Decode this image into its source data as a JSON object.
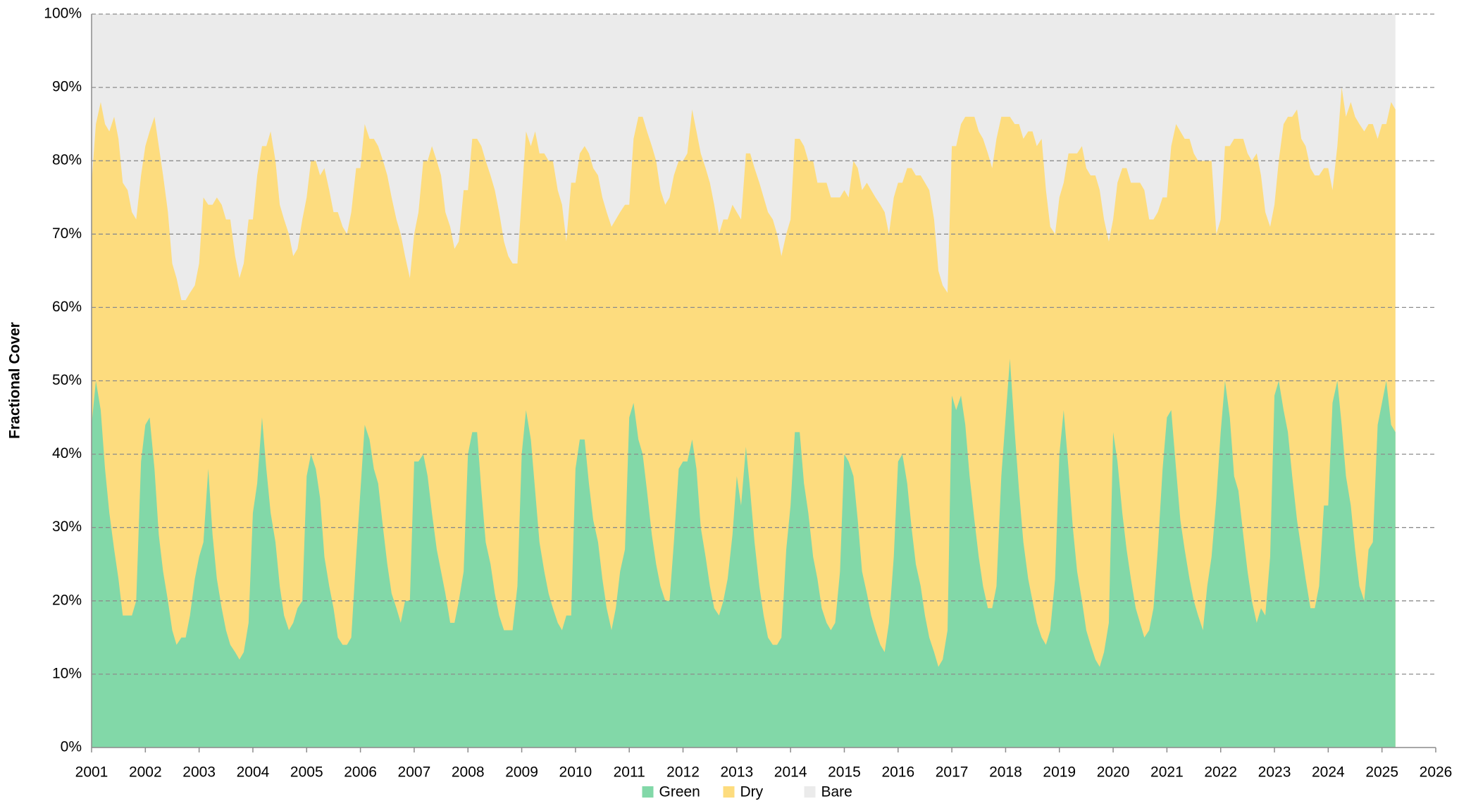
{
  "chart_data": {
    "type": "stacked_area",
    "y_label": "Fractional Cover",
    "xlim": [
      2001,
      2026
    ],
    "ylim": [
      0,
      100
    ],
    "xticks": [
      2001,
      2002,
      2003,
      2004,
      2005,
      2006,
      2007,
      2008,
      2009,
      2010,
      2011,
      2012,
      2013,
      2014,
      2015,
      2016,
      2017,
      2018,
      2019,
      2020,
      2021,
      2022,
      2023,
      2024,
      2025,
      2026
    ],
    "yticks": [
      {
        "value": 0,
        "label": "0%"
      },
      {
        "value": 10,
        "label": "10%"
      },
      {
        "value": 20,
        "label": "20%"
      },
      {
        "value": 30,
        "label": "30%"
      },
      {
        "value": 40,
        "label": "40%"
      },
      {
        "value": 50,
        "label": "50%"
      },
      {
        "value": 60,
        "label": "60%"
      },
      {
        "value": 70,
        "label": "70%"
      },
      {
        "value": 80,
        "label": "80%"
      },
      {
        "value": 90,
        "label": "90%"
      },
      {
        "value": 100,
        "label": "100%"
      }
    ],
    "grid": true,
    "legend": "bottom",
    "x": [
      2001,
      2001.08,
      2001.17,
      2001.25,
      2001.33,
      2001.42,
      2001.5,
      2001.58,
      2001.67,
      2001.75,
      2001.83,
      2001.92,
      2002,
      2002.08,
      2002.17,
      2002.25,
      2002.33,
      2002.42,
      2002.5,
      2002.58,
      2002.67,
      2002.75,
      2002.83,
      2002.92,
      2003,
      2003.08,
      2003.17,
      2003.25,
      2003.33,
      2003.42,
      2003.5,
      2003.58,
      2003.67,
      2003.75,
      2003.83,
      2003.92,
      2004,
      2004.08,
      2004.17,
      2004.25,
      2004.33,
      2004.42,
      2004.5,
      2004.58,
      2004.67,
      2004.75,
      2004.83,
      2004.92,
      2005,
      2005.08,
      2005.17,
      2005.25,
      2005.33,
      2005.42,
      2005.5,
      2005.58,
      2005.67,
      2005.75,
      2005.83,
      2005.92,
      2006,
      2006.08,
      2006.17,
      2006.25,
      2006.33,
      2006.42,
      2006.5,
      2006.58,
      2006.67,
      2006.75,
      2006.83,
      2006.92,
      2007,
      2007.08,
      2007.17,
      2007.25,
      2007.33,
      2007.42,
      2007.5,
      2007.58,
      2007.67,
      2007.75,
      2007.83,
      2007.92,
      2008,
      2008.08,
      2008.17,
      2008.25,
      2008.33,
      2008.42,
      2008.5,
      2008.58,
      2008.67,
      2008.75,
      2008.83,
      2008.92,
      2009,
      2009.08,
      2009.17,
      2009.25,
      2009.33,
      2009.42,
      2009.5,
      2009.58,
      2009.67,
      2009.75,
      2009.83,
      2009.92,
      2010,
      2010.08,
      2010.17,
      2010.25,
      2010.33,
      2010.42,
      2010.5,
      2010.58,
      2010.67,
      2010.75,
      2010.83,
      2010.92,
      2011,
      2011.08,
      2011.17,
      2011.25,
      2011.33,
      2011.42,
      2011.5,
      2011.58,
      2011.67,
      2011.75,
      2011.83,
      2011.92,
      2012,
      2012.08,
      2012.17,
      2012.25,
      2012.33,
      2012.42,
      2012.5,
      2012.58,
      2012.67,
      2012.75,
      2012.83,
      2012.92,
      2013,
      2013.08,
      2013.17,
      2013.25,
      2013.33,
      2013.42,
      2013.5,
      2013.58,
      2013.67,
      2013.75,
      2013.83,
      2013.92,
      2014,
      2014.08,
      2014.17,
      2014.25,
      2014.33,
      2014.42,
      2014.5,
      2014.58,
      2014.67,
      2014.75,
      2014.83,
      2014.92,
      2015,
      2015.08,
      2015.17,
      2015.25,
      2015.33,
      2015.42,
      2015.5,
      2015.58,
      2015.67,
      2015.75,
      2015.83,
      2015.92,
      2016,
      2016.08,
      2016.17,
      2016.25,
      2016.33,
      2016.42,
      2016.5,
      2016.58,
      2016.67,
      2016.75,
      2016.83,
      2016.92,
      2017,
      2017.08,
      2017.17,
      2017.25,
      2017.33,
      2017.42,
      2017.5,
      2017.58,
      2017.67,
      2017.75,
      2017.83,
      2017.92,
      2018,
      2018.08,
      2018.17,
      2018.25,
      2018.33,
      2018.42,
      2018.5,
      2018.58,
      2018.67,
      2018.75,
      2018.83,
      2018.92,
      2019,
      2019.08,
      2019.17,
      2019.25,
      2019.33,
      2019.42,
      2019.5,
      2019.58,
      2019.67,
      2019.75,
      2019.83,
      2019.92,
      2020,
      2020.08,
      2020.17,
      2020.25,
      2020.33,
      2020.42,
      2020.5,
      2020.58,
      2020.67,
      2020.75,
      2020.83,
      2020.92,
      2021,
      2021.08,
      2021.17,
      2021.25,
      2021.33,
      2021.42,
      2021.5,
      2021.58,
      2021.67,
      2021.75,
      2021.83,
      2021.92,
      2022,
      2022.08,
      2022.17,
      2022.25,
      2022.33,
      2022.42,
      2022.5,
      2022.58,
      2022.67,
      2022.75,
      2022.83,
      2022.92,
      2023,
      2023.08,
      2023.17,
      2023.25,
      2023.33,
      2023.42,
      2023.5,
      2023.58,
      2023.67,
      2023.75,
      2023.83,
      2023.92,
      2024,
      2024.08,
      2024.17,
      2024.25,
      2024.33,
      2024.42,
      2024.5,
      2024.58,
      2024.67,
      2024.75,
      2024.83,
      2024.92,
      2025,
      2025.08,
      2025.17,
      2025.25
    ],
    "series": [
      {
        "name": "Green",
        "color": "#82d8a8",
        "values": [
          44,
          50,
          46,
          38,
          32,
          27,
          23,
          18,
          18,
          18,
          20,
          39,
          44,
          45,
          38,
          29,
          24,
          20,
          16,
          14,
          15,
          15,
          18,
          23,
          26,
          28,
          38,
          29,
          23,
          19,
          16,
          14,
          13,
          12,
          13,
          17,
          32,
          36,
          45,
          38,
          32,
          28,
          22,
          18,
          16,
          17,
          19,
          20,
          37,
          40,
          38,
          34,
          26,
          22,
          19,
          15,
          14,
          14,
          15,
          26,
          35,
          44,
          42,
          38,
          36,
          30,
          25,
          21,
          19,
          17,
          20,
          20,
          39,
          39,
          40,
          37,
          32,
          27,
          24,
          21,
          17,
          17,
          20,
          24,
          40,
          43,
          43,
          35,
          28,
          25,
          21,
          18,
          16,
          16,
          16,
          22,
          40,
          46,
          42,
          35,
          28,
          24,
          21,
          19,
          17,
          16,
          18,
          18,
          38,
          42,
          42,
          36,
          31,
          28,
          23,
          19,
          16,
          19,
          24,
          27,
          45,
          47,
          42,
          40,
          35,
          29,
          25,
          22,
          20,
          20,
          28,
          38,
          39,
          39,
          42,
          38,
          30,
          26,
          22,
          19,
          18,
          20,
          23,
          29,
          37,
          33,
          41,
          35,
          28,
          22,
          18,
          15,
          14,
          14,
          15,
          27,
          33,
          43,
          43,
          36,
          32,
          26,
          23,
          19,
          17,
          16,
          17,
          24,
          40,
          39,
          37,
          31,
          24,
          21,
          18,
          16,
          14,
          13,
          17,
          26,
          39,
          40,
          36,
          30,
          25,
          22,
          18,
          15,
          13,
          11,
          12,
          16,
          48,
          46,
          48,
          44,
          37,
          31,
          26,
          22,
          19,
          19,
          22,
          37,
          45,
          53,
          43,
          35,
          28,
          23,
          20,
          17,
          15,
          14,
          16,
          23,
          40,
          46,
          38,
          30,
          24,
          20,
          16,
          14,
          12,
          11,
          13,
          17,
          43,
          39,
          32,
          27,
          23,
          19,
          17,
          15,
          16,
          19,
          27,
          38,
          45,
          46,
          38,
          31,
          27,
          23,
          20,
          18,
          16,
          22,
          26,
          34,
          43,
          50,
          45,
          37,
          35,
          29,
          24,
          20,
          17,
          19,
          18,
          26,
          48,
          50,
          46,
          43,
          37,
          31,
          27,
          23,
          19,
          19,
          22,
          33,
          33,
          47,
          50,
          44,
          37,
          33,
          27,
          22,
          20,
          27,
          28,
          44,
          47,
          50,
          44,
          43
        ]
      },
      {
        "name": "Dry",
        "color": "#fddc7e",
        "values": [
          33,
          35,
          42,
          47,
          52,
          59,
          60,
          59,
          58,
          55,
          52,
          39,
          38,
          39,
          48,
          53,
          54,
          53,
          50,
          50,
          46,
          46,
          44,
          40,
          40,
          47,
          36,
          45,
          52,
          55,
          56,
          58,
          54,
          52,
          53,
          55,
          40,
          42,
          37,
          44,
          52,
          52,
          52,
          54,
          54,
          50,
          49,
          52,
          38,
          40,
          42,
          44,
          53,
          54,
          54,
          58,
          57,
          56,
          58,
          53,
          44,
          41,
          41,
          45,
          46,
          50,
          53,
          54,
          53,
          53,
          47,
          44,
          31,
          34,
          40,
          43,
          50,
          53,
          54,
          52,
          54,
          51,
          49,
          52,
          36,
          40,
          40,
          47,
          52,
          53,
          55,
          55,
          53,
          51,
          50,
          44,
          35,
          38,
          40,
          49,
          53,
          57,
          59,
          61,
          59,
          58,
          51,
          59,
          39,
          39,
          40,
          45,
          48,
          50,
          52,
          54,
          55,
          53,
          49,
          47,
          29,
          36,
          44,
          46,
          49,
          53,
          55,
          54,
          54,
          55,
          50,
          42,
          41,
          42,
          45,
          46,
          51,
          53,
          55,
          55,
          52,
          52,
          49,
          45,
          36,
          39,
          40,
          46,
          51,
          55,
          57,
          58,
          58,
          56,
          52,
          43,
          39,
          40,
          40,
          46,
          48,
          54,
          54,
          58,
          60,
          59,
          58,
          51,
          36,
          36,
          43,
          48,
          52,
          56,
          58,
          59,
          60,
          60,
          53,
          49,
          38,
          37,
          43,
          49,
          53,
          56,
          59,
          61,
          59,
          54,
          51,
          46,
          34,
          36,
          37,
          42,
          49,
          55,
          58,
          61,
          62,
          60,
          61,
          49,
          41,
          33,
          42,
          50,
          55,
          61,
          64,
          65,
          68,
          62,
          55,
          47,
          35,
          31,
          43,
          51,
          57,
          62,
          63,
          64,
          66,
          65,
          59,
          52,
          29,
          38,
          47,
          52,
          54,
          58,
          60,
          61,
          56,
          53,
          46,
          37,
          30,
          36,
          47,
          53,
          56,
          60,
          61,
          62,
          64,
          58,
          54,
          36,
          29,
          32,
          37,
          46,
          48,
          54,
          57,
          60,
          64,
          59,
          55,
          45,
          26,
          30,
          39,
          43,
          49,
          56,
          56,
          59,
          60,
          59,
          56,
          46,
          46,
          29,
          32,
          46,
          49,
          55,
          59,
          63,
          64,
          58,
          57,
          39,
          38,
          35,
          44,
          44
        ]
      },
      {
        "name": "Bare",
        "color": "#ebebeb",
        "values": [
          23,
          15,
          12,
          15,
          16,
          14,
          17,
          23,
          24,
          27,
          28,
          22,
          18,
          16,
          14,
          18,
          22,
          27,
          34,
          36,
          39,
          39,
          38,
          37,
          34,
          25,
          26,
          26,
          25,
          26,
          28,
          28,
          33,
          36,
          34,
          28,
          28,
          22,
          18,
          18,
          16,
          20,
          26,
          28,
          30,
          33,
          32,
          28,
          25,
          20,
          20,
          22,
          21,
          24,
          27,
          27,
          29,
          30,
          27,
          21,
          21,
          15,
          17,
          17,
          18,
          20,
          22,
          25,
          28,
          30,
          33,
          36,
          30,
          27,
          20,
          20,
          18,
          20,
          22,
          27,
          29,
          32,
          31,
          24,
          24,
          17,
          17,
          18,
          20,
          22,
          24,
          27,
          31,
          33,
          34,
          34,
          25,
          16,
          18,
          16,
          19,
          19,
          20,
          20,
          24,
          26,
          31,
          23,
          23,
          19,
          18,
          19,
          21,
          22,
          25,
          27,
          29,
          28,
          27,
          26,
          26,
          17,
          14,
          14,
          16,
          18,
          20,
          24,
          26,
          25,
          22,
          20,
          20,
          19,
          13,
          16,
          19,
          21,
          23,
          26,
          30,
          28,
          28,
          26,
          27,
          28,
          19,
          19,
          21,
          23,
          25,
          27,
          28,
          30,
          33,
          30,
          28,
          17,
          17,
          18,
          20,
          20,
          23,
          23,
          23,
          25,
          25,
          25,
          24,
          25,
          20,
          21,
          24,
          23,
          24,
          25,
          26,
          27,
          30,
          25,
          23,
          23,
          21,
          21,
          22,
          22,
          23,
          24,
          28,
          35,
          37,
          38,
          18,
          18,
          15,
          14,
          14,
          14,
          16,
          17,
          19,
          21,
          17,
          14,
          14,
          14,
          15,
          15,
          17,
          16,
          16,
          18,
          17,
          24,
          29,
          30,
          25,
          23,
          19,
          19,
          19,
          18,
          21,
          22,
          22,
          24,
          28,
          31,
          28,
          23,
          21,
          21,
          23,
          23,
          23,
          24,
          28,
          28,
          27,
          25,
          25,
          18,
          15,
          16,
          17,
          17,
          19,
          20,
          20,
          20,
          20,
          30,
          28,
          18,
          18,
          17,
          17,
          17,
          19,
          20,
          19,
          22,
          27,
          29,
          26,
          20,
          15,
          14,
          14,
          13,
          17,
          18,
          21,
          22,
          22,
          21,
          21,
          24,
          18,
          10,
          14,
          12,
          14,
          15,
          16,
          15,
          15,
          17,
          15,
          15,
          12,
          13
        ]
      }
    ]
  }
}
